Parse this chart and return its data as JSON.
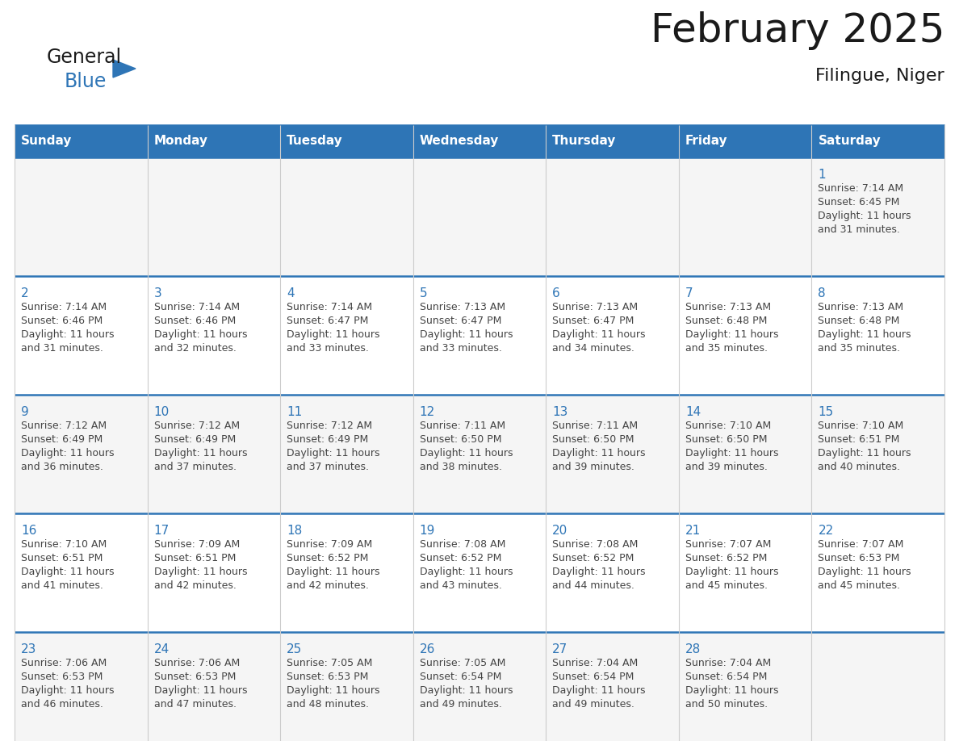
{
  "title": "February 2025",
  "subtitle": "Filingue, Niger",
  "days_of_week": [
    "Sunday",
    "Monday",
    "Tuesday",
    "Wednesday",
    "Thursday",
    "Friday",
    "Saturday"
  ],
  "header_bg": "#2E75B6",
  "header_text": "#FFFFFF",
  "row_bg_odd": "#F5F5F5",
  "row_bg_even": "#FFFFFF",
  "cell_border_color": "#2E75B6",
  "vert_border_color": "#CCCCCC",
  "day_number_color": "#2E75B6",
  "text_color": "#444444",
  "title_color": "#1a1a1a",
  "logo_general_color": "#1a1a1a",
  "logo_blue_color": "#2E75B6",
  "calendar_data": [
    [
      null,
      null,
      null,
      null,
      null,
      null,
      {
        "day": 1,
        "sunrise": "7:14 AM",
        "sunset": "6:45 PM",
        "daylight": "11 hours and 31 minutes."
      }
    ],
    [
      {
        "day": 2,
        "sunrise": "7:14 AM",
        "sunset": "6:46 PM",
        "daylight": "11 hours and 31 minutes."
      },
      {
        "day": 3,
        "sunrise": "7:14 AM",
        "sunset": "6:46 PM",
        "daylight": "11 hours and 32 minutes."
      },
      {
        "day": 4,
        "sunrise": "7:14 AM",
        "sunset": "6:47 PM",
        "daylight": "11 hours and 33 minutes."
      },
      {
        "day": 5,
        "sunrise": "7:13 AM",
        "sunset": "6:47 PM",
        "daylight": "11 hours and 33 minutes."
      },
      {
        "day": 6,
        "sunrise": "7:13 AM",
        "sunset": "6:47 PM",
        "daylight": "11 hours and 34 minutes."
      },
      {
        "day": 7,
        "sunrise": "7:13 AM",
        "sunset": "6:48 PM",
        "daylight": "11 hours and 35 minutes."
      },
      {
        "day": 8,
        "sunrise": "7:13 AM",
        "sunset": "6:48 PM",
        "daylight": "11 hours and 35 minutes."
      }
    ],
    [
      {
        "day": 9,
        "sunrise": "7:12 AM",
        "sunset": "6:49 PM",
        "daylight": "11 hours and 36 minutes."
      },
      {
        "day": 10,
        "sunrise": "7:12 AM",
        "sunset": "6:49 PM",
        "daylight": "11 hours and 37 minutes."
      },
      {
        "day": 11,
        "sunrise": "7:12 AM",
        "sunset": "6:49 PM",
        "daylight": "11 hours and 37 minutes."
      },
      {
        "day": 12,
        "sunrise": "7:11 AM",
        "sunset": "6:50 PM",
        "daylight": "11 hours and 38 minutes."
      },
      {
        "day": 13,
        "sunrise": "7:11 AM",
        "sunset": "6:50 PM",
        "daylight": "11 hours and 39 minutes."
      },
      {
        "day": 14,
        "sunrise": "7:10 AM",
        "sunset": "6:50 PM",
        "daylight": "11 hours and 39 minutes."
      },
      {
        "day": 15,
        "sunrise": "7:10 AM",
        "sunset": "6:51 PM",
        "daylight": "11 hours and 40 minutes."
      }
    ],
    [
      {
        "day": 16,
        "sunrise": "7:10 AM",
        "sunset": "6:51 PM",
        "daylight": "11 hours and 41 minutes."
      },
      {
        "day": 17,
        "sunrise": "7:09 AM",
        "sunset": "6:51 PM",
        "daylight": "11 hours and 42 minutes."
      },
      {
        "day": 18,
        "sunrise": "7:09 AM",
        "sunset": "6:52 PM",
        "daylight": "11 hours and 42 minutes."
      },
      {
        "day": 19,
        "sunrise": "7:08 AM",
        "sunset": "6:52 PM",
        "daylight": "11 hours and 43 minutes."
      },
      {
        "day": 20,
        "sunrise": "7:08 AM",
        "sunset": "6:52 PM",
        "daylight": "11 hours and 44 minutes."
      },
      {
        "day": 21,
        "sunrise": "7:07 AM",
        "sunset": "6:52 PM",
        "daylight": "11 hours and 45 minutes."
      },
      {
        "day": 22,
        "sunrise": "7:07 AM",
        "sunset": "6:53 PM",
        "daylight": "11 hours and 45 minutes."
      }
    ],
    [
      {
        "day": 23,
        "sunrise": "7:06 AM",
        "sunset": "6:53 PM",
        "daylight": "11 hours and 46 minutes."
      },
      {
        "day": 24,
        "sunrise": "7:06 AM",
        "sunset": "6:53 PM",
        "daylight": "11 hours and 47 minutes."
      },
      {
        "day": 25,
        "sunrise": "7:05 AM",
        "sunset": "6:53 PM",
        "daylight": "11 hours and 48 minutes."
      },
      {
        "day": 26,
        "sunrise": "7:05 AM",
        "sunset": "6:54 PM",
        "daylight": "11 hours and 49 minutes."
      },
      {
        "day": 27,
        "sunrise": "7:04 AM",
        "sunset": "6:54 PM",
        "daylight": "11 hours and 49 minutes."
      },
      {
        "day": 28,
        "sunrise": "7:04 AM",
        "sunset": "6:54 PM",
        "daylight": "11 hours and 50 minutes."
      },
      null
    ]
  ]
}
